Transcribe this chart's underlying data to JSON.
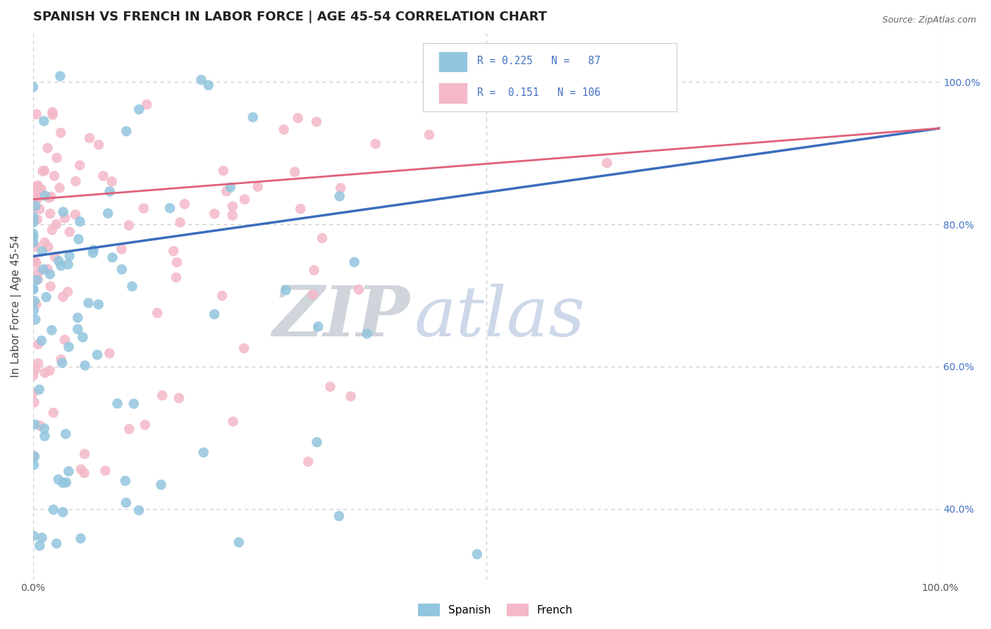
{
  "title": "SPANISH VS FRENCH IN LABOR FORCE | AGE 45-54 CORRELATION CHART",
  "source": "Source: ZipAtlas.com",
  "ylabel": "In Labor Force | Age 45-54",
  "xlim": [
    0.0,
    1.0
  ],
  "ylim": [
    0.3,
    1.07
  ],
  "y_tick_positions": [
    0.4,
    0.6,
    0.8,
    1.0
  ],
  "spanish_color": "#92c5de",
  "french_color": "#f4b8c8",
  "trend_spanish_color": "#3a6ebd",
  "trend_french_color": "#e0607a",
  "watermark_zip": "ZIP",
  "watermark_atlas": "atlas",
  "R_spanish": 0.225,
  "N_spanish": 87,
  "R_french": 0.151,
  "N_french": 106,
  "background_color": "#ffffff",
  "grid_color": "#cccccc",
  "right_tick_color": "#4472c4",
  "legend_text_color": "#4472c4",
  "trend_blue_x0": 0.0,
  "trend_blue_y0": 0.755,
  "trend_blue_x1": 1.0,
  "trend_blue_y1": 0.935,
  "trend_pink_x0": 0.0,
  "trend_pink_y0": 0.835,
  "trend_pink_x1": 1.0,
  "trend_pink_y1": 0.935
}
